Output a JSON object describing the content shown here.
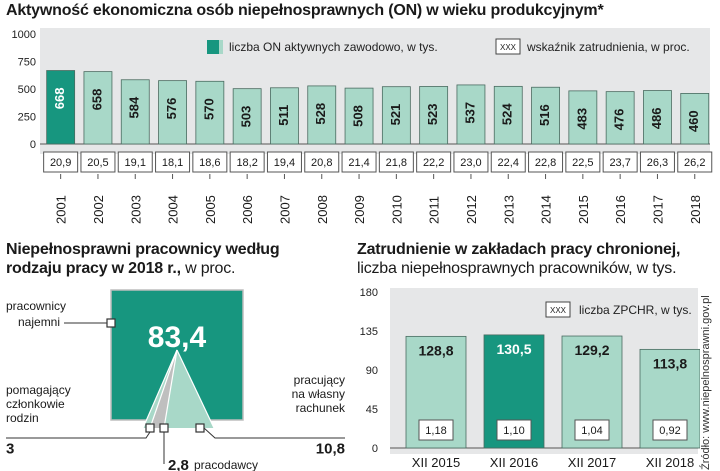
{
  "colors": {
    "accent": "#17967f",
    "bar_light": "#a8d8c8",
    "panel": "#e6e7e8",
    "axis": "#555555"
  },
  "chart_data": [
    {
      "type": "bar",
      "title": "Aktywność ekonomiczna osób niepełnosprawnych (ON) w wieku produkcyjnym*",
      "categories": [
        "2001",
        "2002",
        "2003",
        "2004",
        "2005",
        "2006",
        "2007",
        "2008",
        "2009",
        "2010",
        "2011",
        "2012",
        "2013",
        "2014",
        "2015",
        "2016",
        "2017",
        "2018"
      ],
      "values": [
        668,
        658,
        584,
        576,
        570,
        503,
        511,
        528,
        508,
        521,
        523,
        537,
        524,
        516,
        483,
        476,
        486,
        460
      ],
      "value_labels": [
        "668",
        "658",
        "584",
        "576",
        "570",
        "503",
        "511",
        "528",
        "508",
        "521",
        "523",
        "537",
        "524",
        "516",
        "483",
        "476",
        "486",
        "460"
      ],
      "employment_rate_labels": [
        "20,9",
        "20,5",
        "19,1",
        "18,1",
        "18,6",
        "18,2",
        "19,4",
        "20,8",
        "21,4",
        "21,8",
        "22,2",
        "23,0",
        "22,4",
        "22,8",
        "22,5",
        "23,7",
        "26,3",
        "26,2"
      ],
      "highlight_index": 0,
      "ylim": [
        0,
        1000
      ],
      "yticks": [
        "0",
        "250",
        "500",
        "750",
        "1000"
      ],
      "ytick_values": [
        0,
        250,
        500,
        750,
        1000
      ],
      "legend": {
        "bars": "liczba ON aktywnych zawodowo, w tys.",
        "box_sample": "XXX",
        "box": "wskaźnik zatrudnienia, w proc."
      },
      "legend_position": "top-right",
      "grid": false
    },
    {
      "type": "pie",
      "title": "Niepełnosprawni pracownicy według rodzaju pracy w 2018 r.,",
      "subtitle": "w proc.",
      "slices": [
        {
          "label": "pracownicy najemni",
          "value": 83.4,
          "value_label": "83,4"
        },
        {
          "label": "pomagający członkowie rodzin",
          "value": 3,
          "value_label": "3"
        },
        {
          "label": "pracodawcy",
          "value": 2.8,
          "value_label": "2,8"
        },
        {
          "label": "pracujący na własny rachunek",
          "value": 10.8,
          "value_label": "10,8"
        }
      ]
    },
    {
      "type": "bar",
      "title": "Zatrudnienie w zakładach pracy chronionej,",
      "subtitle": "liczba niepełnosprawnych pracowników, w tys.",
      "categories": [
        "XII 2015",
        "XII 2016",
        "XII 2017",
        "XII 2018"
      ],
      "values": [
        128.8,
        130.5,
        129.2,
        113.8
      ],
      "value_labels": [
        "128,8",
        "130,5",
        "129,2",
        "113,8"
      ],
      "zpchr_labels": [
        "1,18",
        "1,10",
        "1,04",
        "0,92"
      ],
      "highlight_index": 1,
      "ylim": [
        0,
        180
      ],
      "yticks": [
        "0",
        "45",
        "90",
        "135",
        "180"
      ],
      "ytick_values": [
        0,
        45,
        90,
        135,
        180
      ],
      "legend": {
        "box_sample": "XXX",
        "box": "liczba ZPCHR, w tys."
      },
      "legend_position": "top-right",
      "grid": false
    }
  ],
  "source": "Źródło: www.niepelnosprawni.gov.pl"
}
